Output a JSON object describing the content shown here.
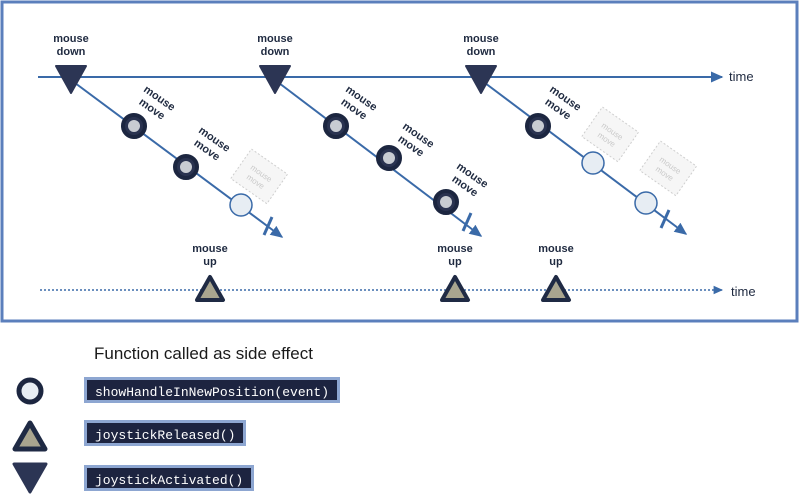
{
  "diagram": {
    "labels": {
      "mouse_down": [
        "mouse",
        "down"
      ],
      "mouse_move": [
        "mouse",
        "move"
      ],
      "mouse_up": [
        "mouse",
        "up"
      ],
      "time": "time"
    },
    "colors": {
      "frame_border": "#5b7fbc",
      "timeline": "#3a6aa8",
      "node_fill": "#2a3350",
      "node_ring": "#1c2640",
      "handle_fill": "#e7edf3",
      "up_triangle_fill": "#a9a58f",
      "up_triangle_stroke": "#1f2a44",
      "down_triangle_fill": "#2c3554"
    }
  },
  "legend": {
    "title": "Function called as side effect",
    "items": [
      {
        "symbol": "handle-circle",
        "code": "showHandleInNewPosition(event)"
      },
      {
        "symbol": "up-triangle",
        "code": "joystickReleased()"
      },
      {
        "symbol": "down-triangle",
        "code": "joystickActivated()"
      }
    ]
  }
}
